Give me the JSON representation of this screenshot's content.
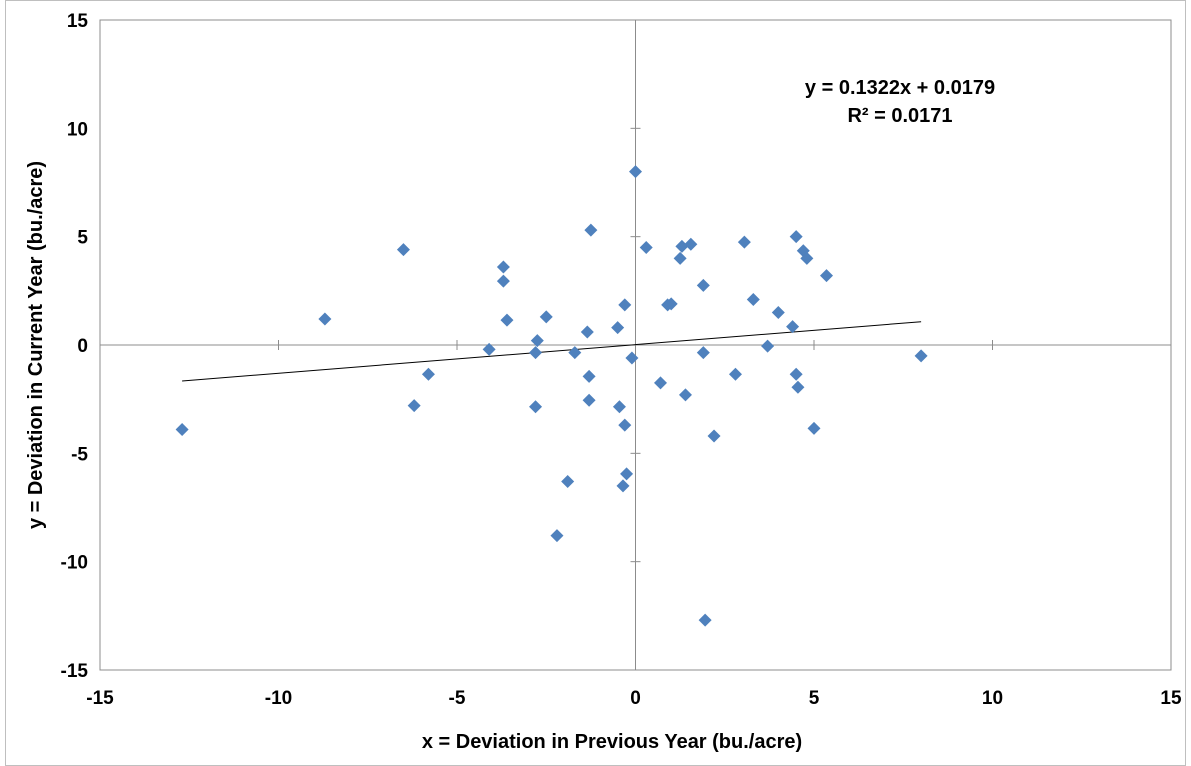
{
  "chart_data": {
    "type": "scatter",
    "title": "",
    "xlabel": "x = Deviation in Previous Year (bu./acre)",
    "ylabel": "y = Deviation in Current Year (bu./acre)",
    "xlim": [
      -15,
      15
    ],
    "ylim": [
      -15,
      15
    ],
    "xticks": [
      -15,
      -10,
      -5,
      0,
      5,
      10,
      15
    ],
    "yticks": [
      -15,
      -10,
      -5,
      0,
      5,
      10,
      15
    ],
    "xtick_labels": [
      "-15",
      "-10",
      "-5",
      "0",
      "5",
      "10",
      "15"
    ],
    "ytick_labels": [
      "-15",
      "-10",
      "-5",
      "0",
      "5",
      "10",
      "15"
    ],
    "grid": false,
    "legend": "none",
    "marker_color": "#4F81BD",
    "line_color": "#000000",
    "series": [
      {
        "name": "",
        "points": [
          {
            "x": -12.7,
            "y": -3.9
          },
          {
            "x": -8.7,
            "y": 1.2
          },
          {
            "x": -6.5,
            "y": 4.4
          },
          {
            "x": -6.2,
            "y": -2.8
          },
          {
            "x": -5.8,
            "y": -1.35
          },
          {
            "x": -4.1,
            "y": -0.2
          },
          {
            "x": -3.7,
            "y": 3.6
          },
          {
            "x": -3.7,
            "y": 2.95
          },
          {
            "x": -3.6,
            "y": 1.15
          },
          {
            "x": -2.8,
            "y": -0.35
          },
          {
            "x": -2.75,
            "y": 0.2
          },
          {
            "x": -2.8,
            "y": -2.85
          },
          {
            "x": -2.5,
            "y": 1.3
          },
          {
            "x": -2.2,
            "y": -8.8
          },
          {
            "x": -1.9,
            "y": -6.3
          },
          {
            "x": -1.7,
            "y": -0.35
          },
          {
            "x": -1.35,
            "y": 0.6
          },
          {
            "x": -1.3,
            "y": -1.45
          },
          {
            "x": -1.3,
            "y": -2.55
          },
          {
            "x": -1.25,
            "y": 5.3
          },
          {
            "x": -0.5,
            "y": 0.8
          },
          {
            "x": -0.45,
            "y": -2.85
          },
          {
            "x": -0.35,
            "y": -6.5
          },
          {
            "x": -0.3,
            "y": 1.85
          },
          {
            "x": -0.3,
            "y": -3.7
          },
          {
            "x": -0.25,
            "y": -5.95
          },
          {
            "x": -0.1,
            "y": -0.6
          },
          {
            "x": 0.0,
            "y": 8.0
          },
          {
            "x": 0.3,
            "y": 4.5
          },
          {
            "x": 0.7,
            "y": -1.75
          },
          {
            "x": 0.9,
            "y": 1.85
          },
          {
            "x": 1.0,
            "y": 1.9
          },
          {
            "x": 1.25,
            "y": 4.0
          },
          {
            "x": 1.3,
            "y": 4.55
          },
          {
            "x": 1.4,
            "y": -2.3
          },
          {
            "x": 1.55,
            "y": 4.65
          },
          {
            "x": 1.9,
            "y": -0.35
          },
          {
            "x": 1.9,
            "y": 2.75
          },
          {
            "x": 1.95,
            "y": -12.7
          },
          {
            "x": 2.2,
            "y": -4.2
          },
          {
            "x": 2.8,
            "y": -1.35
          },
          {
            "x": 3.05,
            "y": 4.75
          },
          {
            "x": 3.3,
            "y": 2.1
          },
          {
            "x": 3.7,
            "y": -0.05
          },
          {
            "x": 4.0,
            "y": 1.5
          },
          {
            "x": 4.4,
            "y": 0.85
          },
          {
            "x": 4.5,
            "y": 5.0
          },
          {
            "x": 4.5,
            "y": -1.35
          },
          {
            "x": 4.55,
            "y": -1.95
          },
          {
            "x": 4.7,
            "y": 4.35
          },
          {
            "x": 4.8,
            "y": 4.0
          },
          {
            "x": 5.0,
            "y": -3.85
          },
          {
            "x": 5.35,
            "y": 3.2
          },
          {
            "x": 8.0,
            "y": -0.5
          }
        ]
      }
    ],
    "trendline": {
      "type": "linear",
      "slope": 0.1322,
      "intercept": 0.0179,
      "x_range": [
        -12.7,
        8.0
      ],
      "equation_label": "y = 0.1322x + 0.0179",
      "r2_label": "R² = 0.0171"
    }
  }
}
